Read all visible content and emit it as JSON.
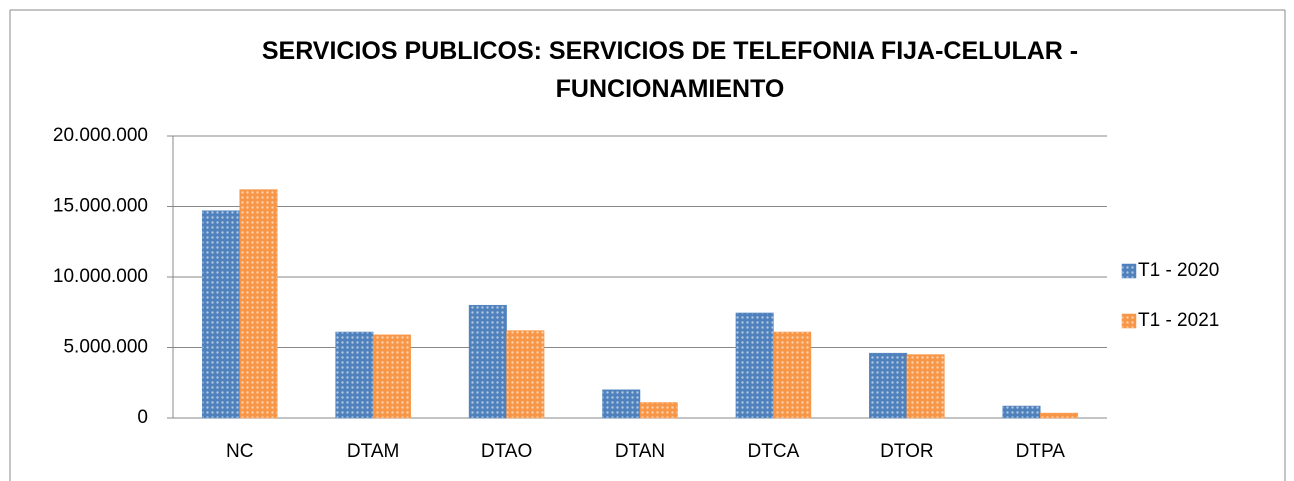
{
  "chart_data": {
    "type": "bar",
    "title": "SERVICIOS PUBLICOS: SERVICIOS DE TELEFONIA FIJA-CELULAR - FUNCIONAMIENTO",
    "categories": [
      "NC",
      "DTAM",
      "DTAO",
      "DTAN",
      "DTCA",
      "DTOR",
      "DTPA"
    ],
    "series": [
      {
        "name": "T1 - 2020",
        "color": "#4f81bd",
        "values": [
          14700000,
          6100000,
          8000000,
          2000000,
          7450000,
          4600000,
          850000
        ]
      },
      {
        "name": "T1 - 2021",
        "color": "#f79646",
        "values": [
          16200000,
          5900000,
          6200000,
          1100000,
          6100000,
          4500000,
          350000
        ]
      }
    ],
    "ylim": [
      0,
      20000000
    ],
    "yticks": [
      0,
      {
        "value": 5000000,
        "label": "5.000.000"
      },
      {
        "value": 10000000,
        "label": "10.000.000"
      },
      {
        "value": 15000000,
        "label": "15.000.000"
      },
      {
        "value": 20000000,
        "label": "20.000.000"
      }
    ],
    "grid": true,
    "legend": "right"
  }
}
